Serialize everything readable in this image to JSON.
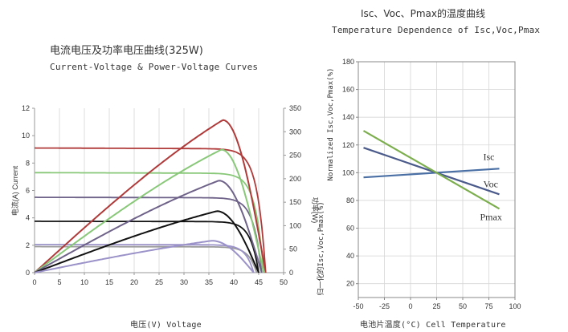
{
  "chart_data": [
    {
      "type": "line",
      "title": "电流电压及功率电压曲线(325W)",
      "subtitle": "Current-Voltage & Power-Voltage Curves",
      "xlabel": "电压(V) Voltage",
      "ylabel_left": "电流(A) Current",
      "ylabel_right": "功率(W)",
      "x_ticks": [
        0,
        5,
        10,
        15,
        20,
        25,
        30,
        35,
        40,
        45,
        50
      ],
      "y_left_ticks": [
        0,
        2,
        4,
        6,
        8,
        10,
        12
      ],
      "y_right_ticks": [
        0,
        50,
        100,
        150,
        200,
        250,
        300,
        350
      ],
      "xlim": [
        0,
        50
      ],
      "ylim_left": [
        0,
        12
      ],
      "ylim_right": [
        0,
        350
      ],
      "grid": "vertical",
      "iv_series": [
        {
          "color": "#b03a3a",
          "isc": 9.1,
          "voc": 46.4,
          "imp": 8.6,
          "vmp": 37.8
        },
        {
          "color": "#88c878",
          "isc": 7.3,
          "voc": 46.0,
          "imp": 6.9,
          "vmp": 37.5
        },
        {
          "color": "#6e6289",
          "isc": 5.5,
          "voc": 45.6,
          "imp": 5.2,
          "vmp": 37.0
        },
        {
          "color": "#111111",
          "isc": 3.75,
          "voc": 45.0,
          "imp": 3.55,
          "vmp": 36.6
        },
        {
          "color": "#9a9a9a",
          "isc": 1.9,
          "voc": 44.6,
          "imp": 1.76,
          "vmp": 36.0
        },
        {
          "color": "#9a92c8",
          "isc": 2.05,
          "voc": 44.0,
          "imp": 1.9,
          "vmp": 35.6
        }
      ],
      "pv_series": [
        {
          "color": "#b03a3a",
          "pmax": 325,
          "vmp": 37.8,
          "voc": 46.4
        },
        {
          "color": "#88c878",
          "pmax": 262,
          "vmp": 37.5,
          "voc": 46.0
        },
        {
          "color": "#6e6289",
          "pmax": 196,
          "vmp": 37.0,
          "voc": 45.6
        },
        {
          "color": "#111111",
          "pmax": 131,
          "vmp": 36.6,
          "voc": 45.0
        },
        {
          "color": "#9a92c8",
          "pmax": 68,
          "vmp": 35.6,
          "voc": 44.0
        }
      ]
    },
    {
      "type": "line",
      "title": "Isc、Voc、Pmax的温度曲线",
      "subtitle": "Temperature Dependence of Isc,Voc,Pmax",
      "xlabel": "电池片温度(°C) Cell Temperature",
      "ylabel": "归一化的Isc,Voc,Pmax(%)",
      "ylabel_en": "Normalized Isc,Voc,Pmax(%)",
      "x_ticks": [
        -50,
        -25,
        0,
        25,
        50,
        75,
        100
      ],
      "y_ticks": [
        20,
        40,
        60,
        80,
        100,
        120,
        140,
        160,
        180
      ],
      "xlim": [
        -50,
        100
      ],
      "ylim": [
        10,
        180
      ],
      "grid": "both",
      "series": [
        {
          "name": "Isc",
          "color": "#4a6fa5",
          "x": [
            -45,
            85
          ],
          "y": [
            96.6,
            102.9
          ]
        },
        {
          "name": "Voc",
          "color": "#4a5a8a",
          "x": [
            -45,
            85
          ],
          "y": [
            118,
            84.4
          ]
        },
        {
          "name": "Pmax",
          "color": "#7cae4e",
          "x": [
            -45,
            85
          ],
          "y": [
            130.2,
            74.0
          ]
        }
      ]
    }
  ]
}
